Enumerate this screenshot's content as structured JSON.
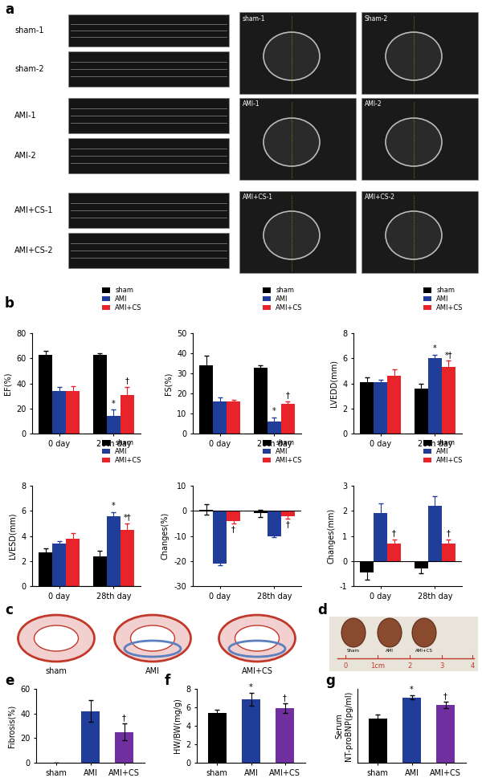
{
  "figure": {
    "panel_labels": [
      "a",
      "b",
      "c",
      "d",
      "e",
      "f",
      "g"
    ],
    "a": {
      "mmode_labels": [
        "sham-1",
        "sham-2",
        "AMI-1",
        "AMI-2",
        "AMI+CS-1",
        "AMI+CS-2"
      ],
      "echo_labels": [
        "sham-1",
        "Sham-2",
        "AMI-1",
        "AMI-2",
        "AMI+CS-1",
        "AMI+CS-2"
      ]
    },
    "c": {
      "labels": [
        "sham",
        "AMI",
        "AMI+CS"
      ]
    },
    "d": {
      "labels": [
        "Sham",
        "AMI",
        "AMI+CS"
      ],
      "ruler": [
        "0",
        "1cm",
        "2",
        "3",
        "4"
      ]
    }
  },
  "chart_data": [
    {
      "type": "bar",
      "ylabel": "EF(%)",
      "categories": [
        "0 day",
        "28th day"
      ],
      "ylim": [
        0,
        80
      ],
      "yticks": [
        0,
        20,
        40,
        60,
        80
      ],
      "legend": "upper right",
      "series": [
        {
          "name": "sham",
          "color": "#000000",
          "values": [
            63,
            63
          ],
          "errors": [
            3,
            1
          ],
          "significance": [
            null,
            null
          ]
        },
        {
          "name": "AMI",
          "color": "#1f3d99",
          "values": [
            34,
            14
          ],
          "errors": [
            3,
            5
          ],
          "significance": [
            null,
            "*"
          ]
        },
        {
          "name": "AMI+CS",
          "color": "#e8242a",
          "values": [
            34,
            31
          ],
          "errors": [
            4,
            6
          ],
          "significance": [
            null,
            "†"
          ]
        }
      ]
    },
    {
      "type": "bar",
      "ylabel": "FS(%)",
      "categories": [
        "0 day",
        "28th day"
      ],
      "ylim": [
        0,
        50
      ],
      "yticks": [
        0,
        10,
        20,
        30,
        40,
        50
      ],
      "legend": "upper right",
      "series": [
        {
          "name": "sham",
          "color": "#000000",
          "values": [
            34,
            33
          ],
          "errors": [
            5,
            1
          ],
          "significance": [
            null,
            null
          ]
        },
        {
          "name": "AMI",
          "color": "#1f3d99",
          "values": [
            16,
            6
          ],
          "errors": [
            2,
            2
          ],
          "significance": [
            null,
            "*"
          ]
        },
        {
          "name": "AMI+CS",
          "color": "#e8242a",
          "values": [
            16,
            15
          ],
          "errors": [
            1,
            1
          ],
          "significance": [
            null,
            "†"
          ]
        }
      ]
    },
    {
      "type": "bar",
      "ylabel": "LVEDD(mm)",
      "categories": [
        "0 day",
        "28th day"
      ],
      "ylim": [
        0,
        8
      ],
      "yticks": [
        0,
        2,
        4,
        6,
        8
      ],
      "legend": "upper right",
      "series": [
        {
          "name": "sham",
          "color": "#000000",
          "values": [
            4.1,
            3.6
          ],
          "errors": [
            0.4,
            0.4
          ],
          "significance": [
            null,
            null
          ]
        },
        {
          "name": "AMI",
          "color": "#1f3d99",
          "values": [
            4.1,
            6.0
          ],
          "errors": [
            0.2,
            0.3
          ],
          "significance": [
            null,
            "*"
          ]
        },
        {
          "name": "AMI+CS",
          "color": "#e8242a",
          "values": [
            4.6,
            5.3
          ],
          "errors": [
            0.5,
            0.5
          ],
          "significance": [
            null,
            "*†"
          ]
        }
      ]
    },
    {
      "type": "bar",
      "ylabel": "LVESD(mm)",
      "categories": [
        "0 day",
        "28th day"
      ],
      "ylim": [
        0,
        8
      ],
      "yticks": [
        0,
        2,
        4,
        6,
        8
      ],
      "legend": "upper right",
      "series": [
        {
          "name": "sham",
          "color": "#000000",
          "values": [
            2.7,
            2.4
          ],
          "errors": [
            0.3,
            0.4
          ],
          "significance": [
            null,
            null
          ]
        },
        {
          "name": "AMI",
          "color": "#1f3d99",
          "values": [
            3.4,
            5.6
          ],
          "errors": [
            0.2,
            0.3
          ],
          "significance": [
            null,
            "*"
          ]
        },
        {
          "name": "AMI+CS",
          "color": "#e8242a",
          "values": [
            3.8,
            4.5
          ],
          "errors": [
            0.4,
            0.5
          ],
          "significance": [
            null,
            "*†"
          ]
        }
      ]
    },
    {
      "type": "bar",
      "ylabel": "Changes(%)",
      "categories": [
        "0 day",
        "28th day"
      ],
      "ylim": [
        -30,
        10
      ],
      "yticks": [
        -30,
        -20,
        -10,
        0,
        10
      ],
      "legend": "upper right",
      "series": [
        {
          "name": "sham",
          "color": "#000000",
          "values": [
            0.5,
            -1
          ],
          "errors": [
            2,
            1.5
          ],
          "significance": [
            null,
            null
          ]
        },
        {
          "name": "AMI",
          "color": "#1f3d99",
          "values": [
            -21,
            -10
          ],
          "errors": [
            0.8,
            0.5
          ],
          "significance": [
            null,
            null
          ]
        },
        {
          "name": "AMI+CS",
          "color": "#e8242a",
          "values": [
            -4,
            -2
          ],
          "errors": [
            1,
            1
          ],
          "significance": [
            "†",
            "†"
          ]
        }
      ]
    },
    {
      "type": "bar",
      "ylabel": "Changes(mm)",
      "categories": [
        "0 day",
        "28th day"
      ],
      "ylim": [
        -1,
        3
      ],
      "yticks": [
        -1,
        0,
        1,
        2,
        3
      ],
      "legend": "upper right",
      "series": [
        {
          "name": "sham",
          "color": "#000000",
          "values": [
            -0.45,
            -0.3
          ],
          "errors": [
            0.3,
            0.2
          ],
          "significance": [
            null,
            null
          ]
        },
        {
          "name": "AMI",
          "color": "#1f3d99",
          "values": [
            1.9,
            2.2
          ],
          "errors": [
            0.4,
            0.4
          ],
          "significance": [
            null,
            null
          ]
        },
        {
          "name": "AMI+CS",
          "color": "#e8242a",
          "values": [
            0.7,
            0.7
          ],
          "errors": [
            0.15,
            0.15
          ],
          "significance": [
            "†",
            "†"
          ]
        }
      ]
    },
    {
      "type": "bar",
      "ylabel": "Fibrosis(%)",
      "categories": [
        "sham",
        "AMI",
        "AMI+CS"
      ],
      "values": [
        0,
        42,
        25
      ],
      "errors": [
        0,
        9,
        7
      ],
      "colors": [
        "#000000",
        "#1f3d99",
        "#7030a0"
      ],
      "significance": [
        null,
        null,
        "†"
      ],
      "ylim": [
        0,
        60
      ],
      "yticks": [
        0,
        20,
        40,
        60
      ]
    },
    {
      "type": "bar",
      "ylabel": "HW/BW(mg/g)",
      "categories": [
        "sham",
        "AMI",
        "AMI+CS"
      ],
      "values": [
        5.4,
        6.9,
        5.9
      ],
      "errors": [
        0.3,
        0.7,
        0.5
      ],
      "colors": [
        "#000000",
        "#1f3d99",
        "#7030a0"
      ],
      "significance": [
        null,
        "*",
        "†"
      ],
      "ylim": [
        0,
        8
      ],
      "yticks": [
        0,
        2,
        4,
        6,
        8
      ]
    },
    {
      "type": "bar",
      "ylabel": "Serum\nNT-proBNP(pg/ml)",
      "categories": [
        "sham",
        "AMI",
        "AMI+CS"
      ],
      "values": [
        4200,
        6200,
        5500
      ],
      "errors": [
        400,
        200,
        300
      ],
      "colors": [
        "#000000",
        "#1f3d99",
        "#7030a0"
      ],
      "significance": [
        null,
        "*",
        "†"
      ],
      "ylim": [
        0,
        7000
      ],
      "yticks": [],
      "tick_labels": "x"
    }
  ]
}
